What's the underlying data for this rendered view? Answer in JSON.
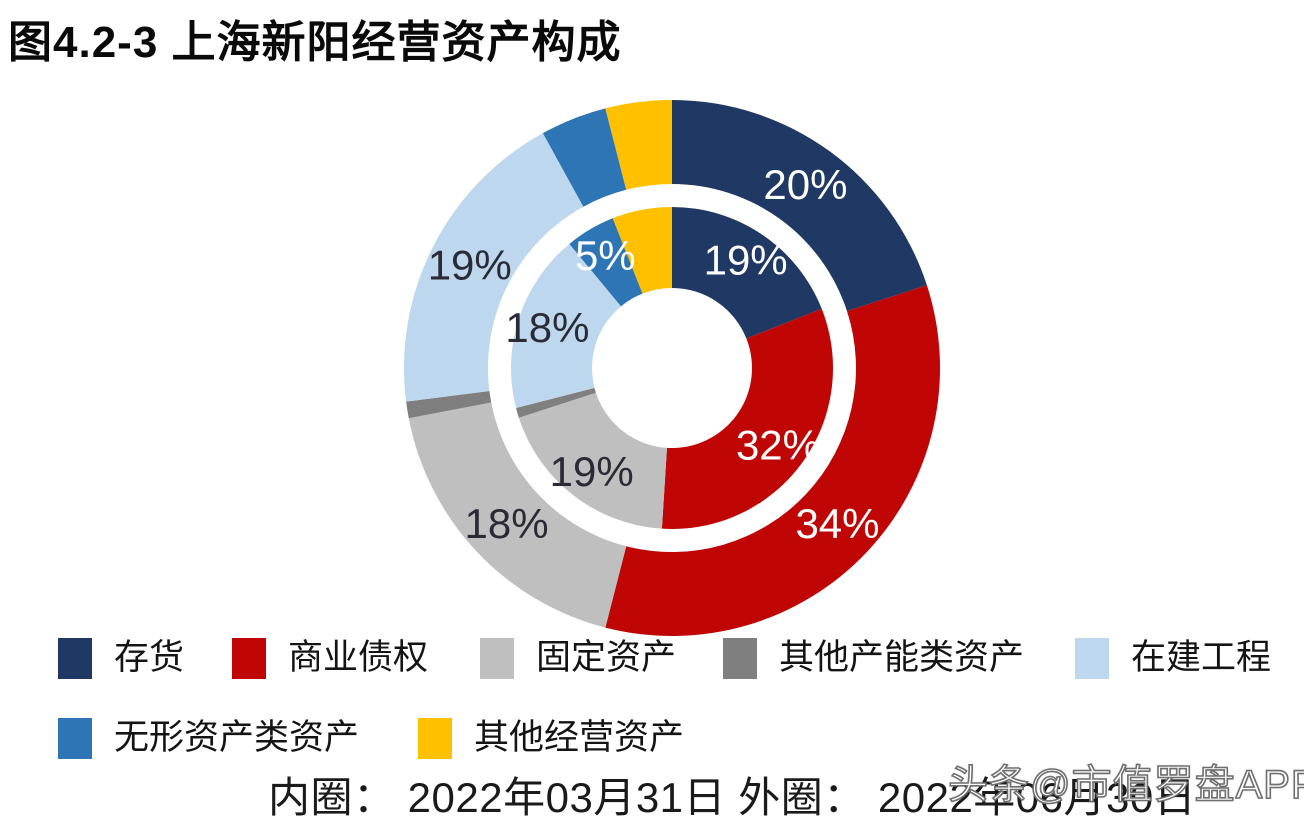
{
  "title": "图4.2-3 上海新阳经营资产构成",
  "watermark": "头条@市值罗盘APP",
  "caption": {
    "text": "内圈： 2022年03月31日 外圈： 2022年06月30日"
  },
  "legend": {
    "items": [
      {
        "label": "存货",
        "color": "#1F3864"
      },
      {
        "label": "商业债权",
        "color": "#C00505"
      },
      {
        "label": "固定资产",
        "color": "#BFBFBF"
      },
      {
        "label": "其他产能类资产",
        "color": "#7F7F7F"
      },
      {
        "label": "在建工程",
        "color": "#BDD7EE"
      },
      {
        "label": "无形资产类资产",
        "color": "#2E75B6"
      },
      {
        "label": "其他经营资产",
        "color": "#FFC000"
      }
    ]
  },
  "chart_data": {
    "type": "pie",
    "subtype": "two-ring-donut",
    "title": "图4.2-3 上海新阳经营资产构成",
    "legend_position": "bottom",
    "categories": [
      "存货",
      "商业债权",
      "固定资产",
      "其他产能类资产",
      "在建工程",
      "无形资产类资产",
      "其他经营资产"
    ],
    "colors": [
      "#1F3864",
      "#C00505",
      "#BFBFBF",
      "#7F7F7F",
      "#BDD7EE",
      "#2E75B6",
      "#FFC000"
    ],
    "label_colors": [
      "#FFFFFF",
      "#FFFFFF",
      "#2B2B35",
      "#FFFFFF",
      "#2B2B35",
      "#FFFFFF",
      "#2B2B35"
    ],
    "series": [
      {
        "name": "内圈",
        "date": "2022年03月31日",
        "ring": "inner",
        "values": [
          19,
          32,
          19,
          1,
          18,
          5,
          6
        ],
        "labels": [
          "19%",
          "32%",
          "19%",
          "",
          "18%",
          "5%",
          ""
        ]
      },
      {
        "name": "外圈",
        "date": "2022年06月30日",
        "ring": "outer",
        "values": [
          20,
          34,
          18,
          1,
          19,
          4,
          4
        ],
        "labels": [
          "20%",
          "34%",
          "18%",
          "",
          "19%",
          "",
          ""
        ]
      }
    ],
    "note": "Slices without printed labels (其他产能类资产, and outer 无形资产类资产 / 其他经营资产) are estimated from arc angles."
  }
}
